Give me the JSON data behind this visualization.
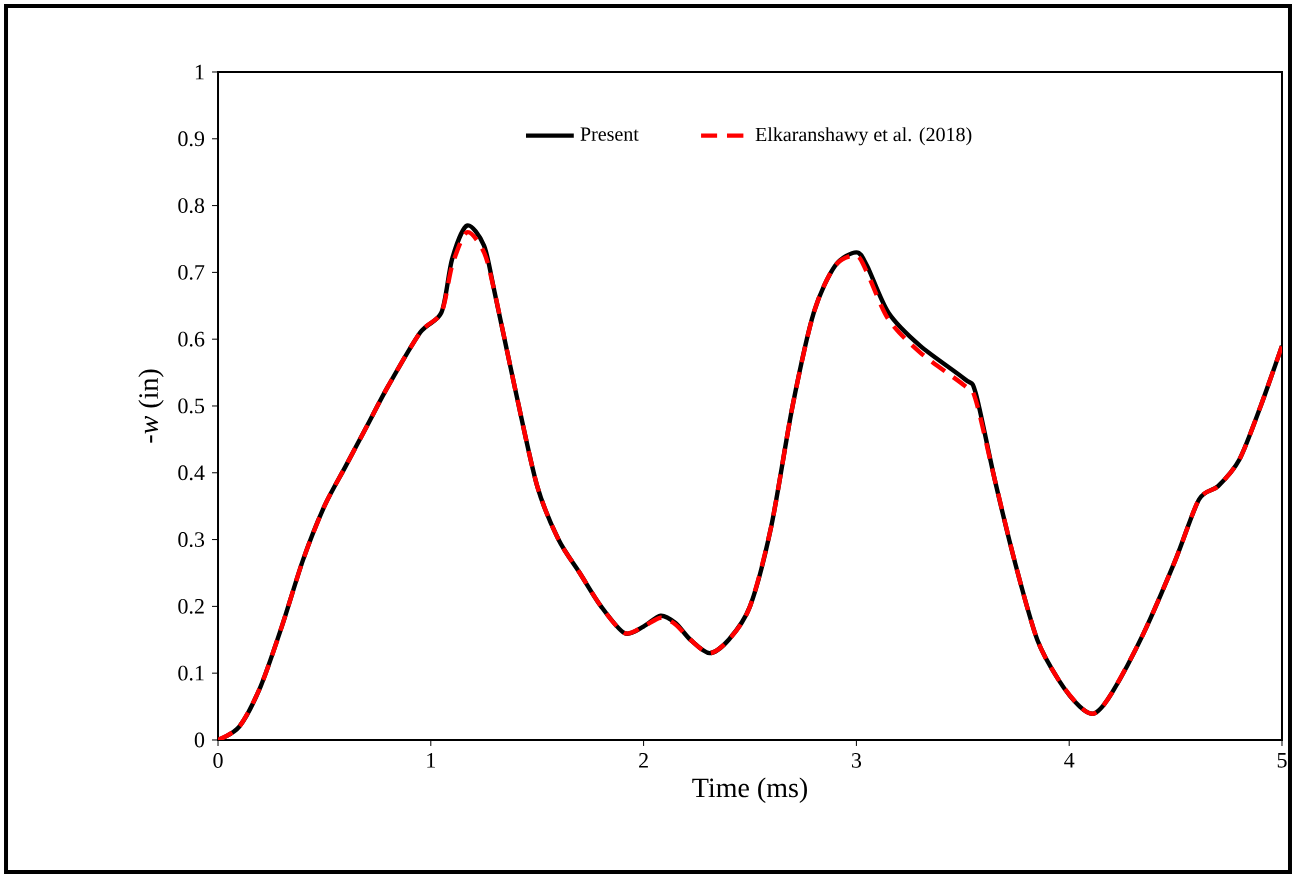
{
  "chart_data": {
    "type": "line",
    "xlabel": "Time (ms)",
    "ylabel": "-*w* (in)",
    "xlim": [
      0,
      5
    ],
    "ylim": [
      0,
      1
    ],
    "xticks": [
      0,
      1,
      2,
      3,
      4,
      5
    ],
    "yticks": [
      0,
      0.1,
      0.2,
      0.3,
      0.4,
      0.5,
      0.6,
      0.7,
      0.8,
      0.9,
      1
    ],
    "grid": false,
    "legend": "top",
    "marker": "none",
    "series": [
      {
        "name": "Present",
        "color": "#000000",
        "line_style": "solid",
        "x": [
          0,
          0.1,
          0.2,
          0.3,
          0.4,
          0.5,
          0.6,
          0.7,
          0.8,
          0.95,
          1.05,
          1.1,
          1.17,
          1.25,
          1.3,
          1.4,
          1.5,
          1.6,
          1.7,
          1.8,
          1.91,
          2.0,
          2.08,
          2.15,
          2.22,
          2.31,
          2.4,
          2.5,
          2.6,
          2.7,
          2.8,
          2.9,
          3.0,
          3.05,
          3.15,
          3.3,
          3.51,
          3.56,
          3.65,
          3.75,
          3.85,
          3.95,
          4.05,
          4.12,
          4.2,
          4.35,
          4.5,
          4.61,
          4.7,
          4.8,
          4.9,
          5.0
        ],
        "values": [
          0,
          0.02,
          0.08,
          0.17,
          0.27,
          0.35,
          0.41,
          0.47,
          0.53,
          0.61,
          0.64,
          0.72,
          0.77,
          0.74,
          0.67,
          0.52,
          0.38,
          0.3,
          0.25,
          0.2,
          0.16,
          0.17,
          0.186,
          0.175,
          0.15,
          0.13,
          0.15,
          0.2,
          0.32,
          0.5,
          0.64,
          0.71,
          0.73,
          0.71,
          0.64,
          0.59,
          0.54,
          0.52,
          0.39,
          0.26,
          0.15,
          0.09,
          0.05,
          0.04,
          0.07,
          0.16,
          0.27,
          0.36,
          0.38,
          0.42,
          0.5,
          0.59
        ]
      },
      {
        "name": "Elkaranshawy et al. (2018)",
        "color": "#ff0000",
        "line_style": "dashed",
        "x": [
          0,
          0.1,
          0.2,
          0.3,
          0.4,
          0.5,
          0.6,
          0.7,
          0.8,
          0.95,
          1.05,
          1.1,
          1.17,
          1.25,
          1.3,
          1.4,
          1.5,
          1.6,
          1.7,
          1.8,
          1.91,
          2.0,
          2.08,
          2.15,
          2.22,
          2.31,
          2.4,
          2.5,
          2.6,
          2.7,
          2.8,
          2.9,
          3.0,
          3.05,
          3.15,
          3.3,
          3.51,
          3.56,
          3.65,
          3.75,
          3.85,
          3.95,
          4.05,
          4.12,
          4.2,
          4.35,
          4.5,
          4.61,
          4.7,
          4.8,
          4.9,
          5.0
        ],
        "values": [
          0,
          0.02,
          0.08,
          0.17,
          0.27,
          0.35,
          0.41,
          0.47,
          0.53,
          0.61,
          0.64,
          0.71,
          0.76,
          0.73,
          0.67,
          0.52,
          0.38,
          0.3,
          0.25,
          0.2,
          0.16,
          0.17,
          0.183,
          0.173,
          0.15,
          0.13,
          0.15,
          0.2,
          0.32,
          0.5,
          0.64,
          0.71,
          0.725,
          0.7,
          0.63,
          0.58,
          0.53,
          0.51,
          0.39,
          0.26,
          0.15,
          0.09,
          0.05,
          0.04,
          0.07,
          0.16,
          0.27,
          0.36,
          0.38,
          0.42,
          0.5,
          0.59
        ]
      }
    ]
  }
}
